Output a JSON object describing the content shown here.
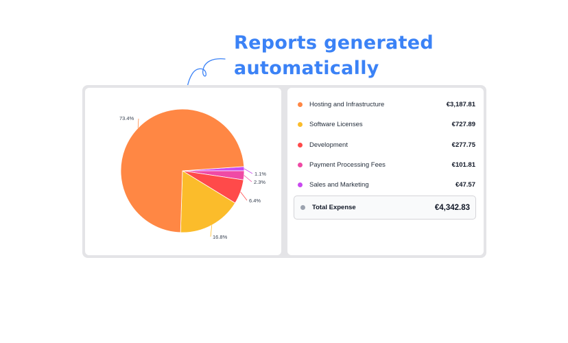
{
  "headline": {
    "line1": "Reports generated",
    "line2": "automatically"
  },
  "chart_data": {
    "type": "pie",
    "categories": [
      "Hosting and Infrastructure",
      "Software Licenses",
      "Development",
      "Payment Processing Fees",
      "Sales and Marketing"
    ],
    "values": [
      3187.81,
      727.89,
      277.75,
      101.81,
      47.57
    ],
    "percent_labels": [
      "73.4%",
      "16.8%",
      "6.4%",
      "2.3%",
      "1.1%"
    ],
    "colors": [
      "#ff8744",
      "#fbbc2b",
      "#ff4a4a",
      "#ef4aa5",
      "#c94af0"
    ]
  },
  "breakdown": {
    "items": [
      {
        "label": "Hosting and Infrastructure",
        "value": "€3,187.81",
        "color": "#ff8744"
      },
      {
        "label": "Software Licenses",
        "value": "€727.89",
        "color": "#fbbc2b"
      },
      {
        "label": "Development",
        "value": "€277.75",
        "color": "#ff4a4a"
      },
      {
        "label": "Payment Processing Fees",
        "value": "€101.81",
        "color": "#ef4aa5"
      },
      {
        "label": "Sales and Marketing",
        "value": "€47.57",
        "color": "#c94af0"
      }
    ],
    "total": {
      "label": "Total Expense",
      "value": "€4,342.83",
      "color": "#9ca3af"
    }
  }
}
